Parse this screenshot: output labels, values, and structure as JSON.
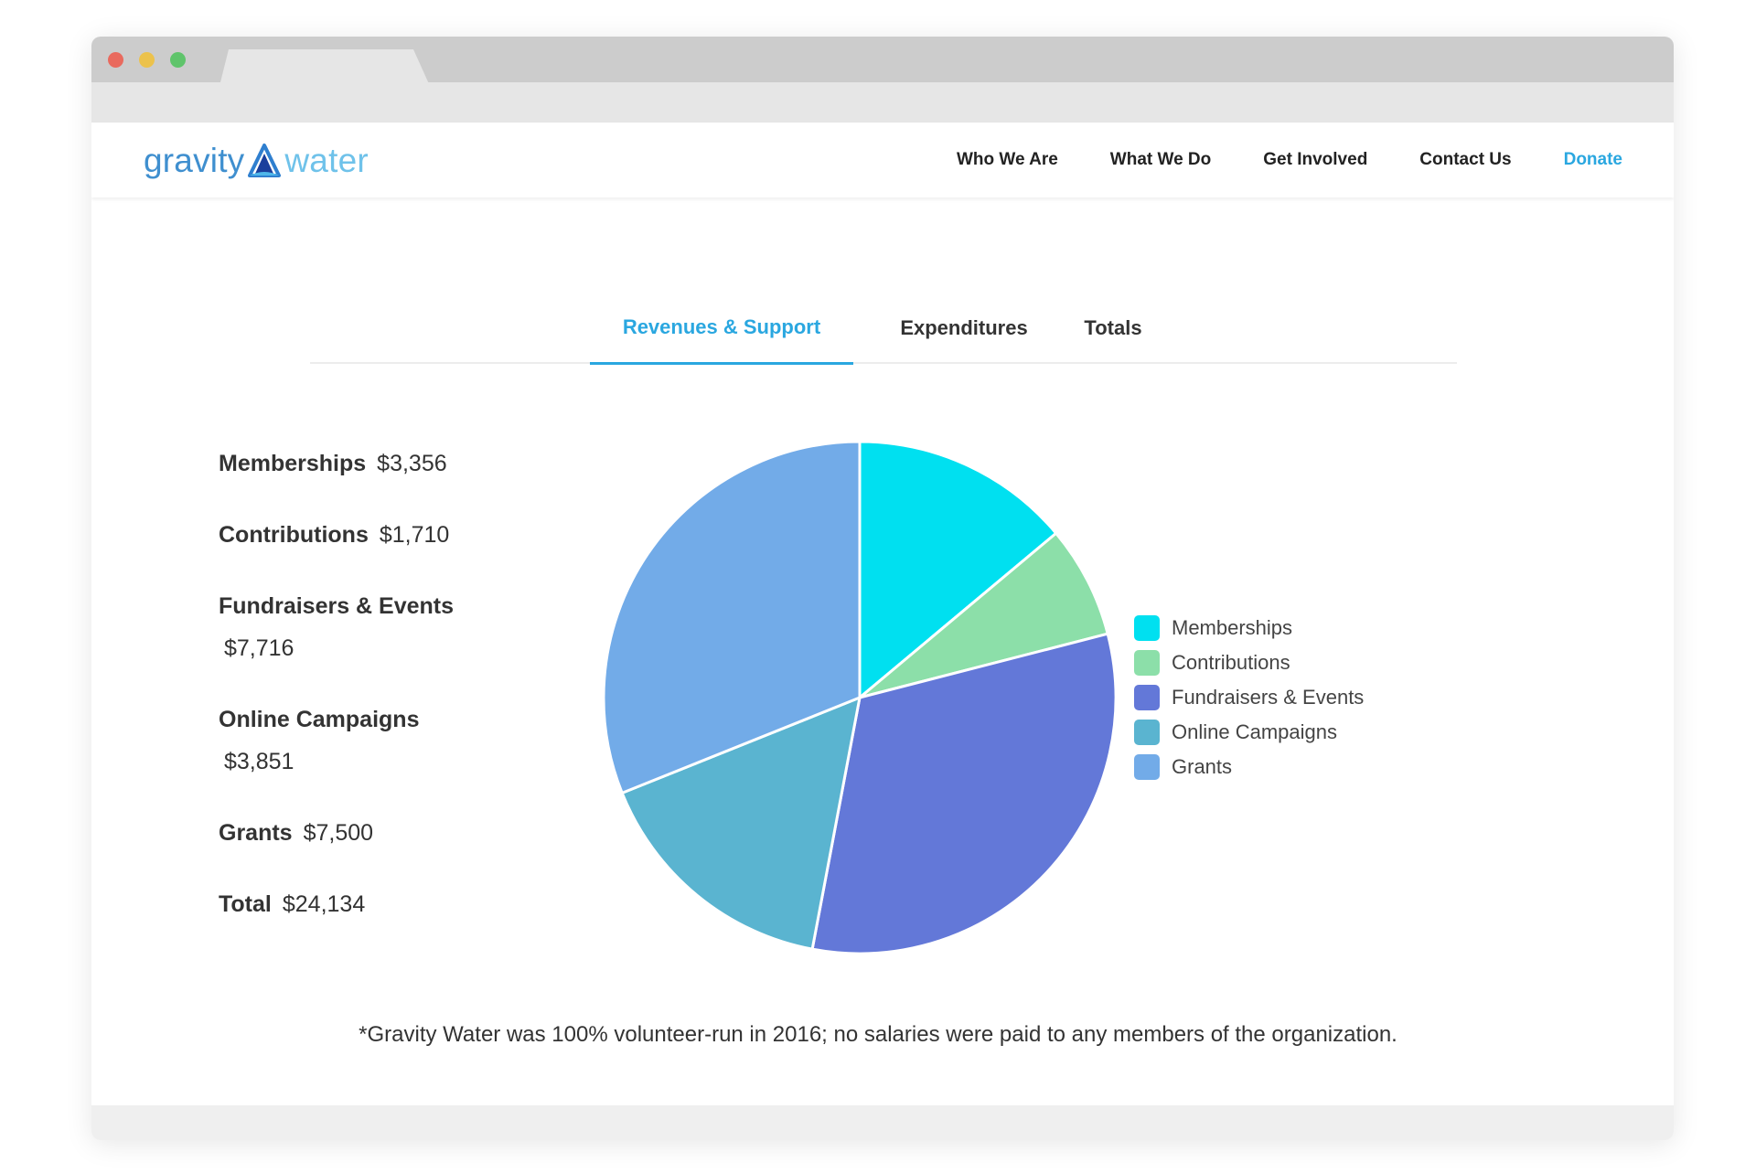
{
  "header": {
    "logo": {
      "word1": "gravity",
      "word2": "water"
    },
    "nav": [
      {
        "label": "Who We Are"
      },
      {
        "label": "What We Do"
      },
      {
        "label": "Get Involved"
      },
      {
        "label": "Contact Us"
      },
      {
        "label": "Donate"
      }
    ]
  },
  "tabs": [
    {
      "label": "Revenues & Support",
      "active": true
    },
    {
      "label": "Expenditures",
      "active": false
    },
    {
      "label": "Totals",
      "active": false
    }
  ],
  "stats": [
    {
      "label": "Memberships",
      "value": "$3,356"
    },
    {
      "label": "Contributions",
      "value": "$1,710"
    },
    {
      "label": "Fundraisers & Events",
      "value": "$7,716"
    },
    {
      "label": "Online Campaigns",
      "value": "$3,851"
    },
    {
      "label": "Grants",
      "value": "$7,500"
    },
    {
      "label": "Total",
      "value": "$24,134"
    }
  ],
  "chart_data": {
    "type": "pie",
    "categories": [
      "Memberships",
      "Contributions",
      "Fundraisers & Events",
      "Online Campaigns",
      "Grants"
    ],
    "values": [
      3356,
      1710,
      7716,
      3851,
      7500
    ],
    "colors": [
      "#00e0f0",
      "#8cdfa9",
      "#6378d8",
      "#5ab4d0",
      "#72abe8"
    ],
    "legend_position": "right"
  },
  "footnote": "*Gravity Water was 100% volunteer-run in 2016; no salaries were paid to any members of the organization."
}
